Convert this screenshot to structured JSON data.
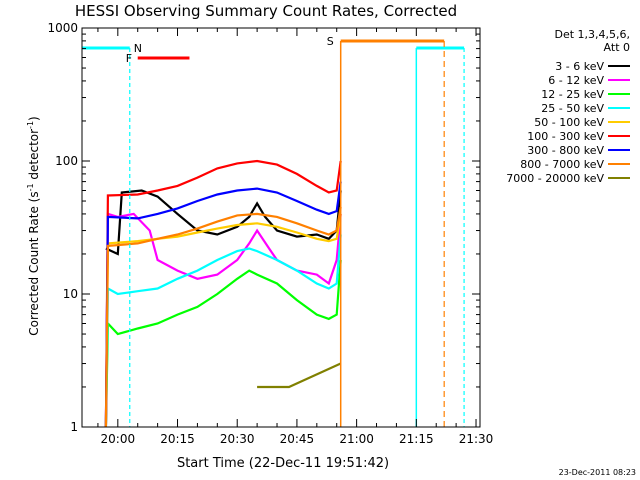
{
  "chart_data": {
    "type": "line",
    "title": "HESSI Observing Summary Count Rates, Corrected",
    "xlabel": "Start Time (22-Dec-11 19:51:42)",
    "ylabel_main": "Corrected Count Rate (s",
    "ylabel_sup1": "-1",
    "ylabel_mid": " detector",
    "ylabel_sup2": "-1",
    "ylabel_end": ")",
    "y_scale": "log",
    "ylim": [
      1,
      1000
    ],
    "xlim": [
      "19:51:42",
      "21:31:00"
    ],
    "xticks": [
      "20:00",
      "20:15",
      "20:30",
      "20:45",
      "21:00",
      "21:15",
      "21:30"
    ],
    "yticks": [
      "1",
      "10",
      "100",
      "1000"
    ],
    "legend_header": [
      "Det 1,3,4,5,6,",
      "Att 0"
    ],
    "legend_position": "top-right",
    "footer_timestamp": "23-Dec-2011 08:23",
    "series": [
      {
        "name": "3 - 6 keV",
        "color": "#000000",
        "points": [
          [
            "19:57",
            22
          ],
          [
            "20:00",
            20
          ],
          [
            "20:01",
            58
          ],
          [
            "20:06",
            60
          ],
          [
            "20:10",
            54
          ],
          [
            "20:15",
            40
          ],
          [
            "20:20",
            30
          ],
          [
            "20:25",
            28
          ],
          [
            "20:30",
            32
          ],
          [
            "20:33",
            38
          ],
          [
            "20:35",
            48
          ],
          [
            "20:37",
            38
          ],
          [
            "20:40",
            30
          ],
          [
            "20:45",
            27
          ],
          [
            "20:50",
            28
          ],
          [
            "20:53",
            26
          ],
          [
            "20:55",
            30
          ],
          [
            "20:56",
            60
          ]
        ]
      },
      {
        "name": "6 - 12 keV",
        "color": "#ff00ff",
        "points": [
          [
            "19:57",
            1
          ],
          [
            "19:57.5",
            40
          ],
          [
            "20:00",
            38
          ],
          [
            "20:04",
            40
          ],
          [
            "20:08",
            30
          ],
          [
            "20:10",
            18
          ],
          [
            "20:15",
            15
          ],
          [
            "20:20",
            13
          ],
          [
            "20:25",
            14
          ],
          [
            "20:30",
            18
          ],
          [
            "20:33",
            24
          ],
          [
            "20:35",
            30
          ],
          [
            "20:38",
            22
          ],
          [
            "20:40",
            18
          ],
          [
            "20:45",
            15
          ],
          [
            "20:50",
            14
          ],
          [
            "20:53",
            12
          ],
          [
            "20:55",
            18
          ],
          [
            "20:56",
            40
          ]
        ]
      },
      {
        "name": "12 - 25 keV",
        "color": "#00ff00",
        "points": [
          [
            "19:57",
            1
          ],
          [
            "19:57.5",
            6
          ],
          [
            "20:00",
            5
          ],
          [
            "20:05",
            5.5
          ],
          [
            "20:10",
            6
          ],
          [
            "20:15",
            7
          ],
          [
            "20:20",
            8
          ],
          [
            "20:25",
            10
          ],
          [
            "20:30",
            13
          ],
          [
            "20:33",
            15
          ],
          [
            "20:35",
            14
          ],
          [
            "20:40",
            12
          ],
          [
            "20:45",
            9
          ],
          [
            "20:50",
            7
          ],
          [
            "20:53",
            6.5
          ],
          [
            "20:55",
            7
          ],
          [
            "20:56",
            18
          ]
        ]
      },
      {
        "name": "25 - 50 keV",
        "color": "#00ffff",
        "points": [
          [
            "19:57",
            1
          ],
          [
            "19:57.5",
            11
          ],
          [
            "20:00",
            10
          ],
          [
            "20:05",
            10.5
          ],
          [
            "20:10",
            11
          ],
          [
            "20:15",
            13
          ],
          [
            "20:20",
            15
          ],
          [
            "20:25",
            18
          ],
          [
            "20:30",
            21
          ],
          [
            "20:33",
            22
          ],
          [
            "20:35",
            21
          ],
          [
            "20:40",
            18
          ],
          [
            "20:45",
            15
          ],
          [
            "20:50",
            12
          ],
          [
            "20:53",
            11
          ],
          [
            "20:55",
            12
          ],
          [
            "20:56",
            28
          ]
        ]
      },
      {
        "name": "50 - 100 keV",
        "color": "#ffcc00",
        "points": [
          [
            "19:57",
            1
          ],
          [
            "19:57.5",
            24
          ],
          [
            "20:05",
            25
          ],
          [
            "20:10",
            26
          ],
          [
            "20:15",
            27
          ],
          [
            "20:20",
            29
          ],
          [
            "20:25",
            31
          ],
          [
            "20:30",
            33
          ],
          [
            "20:35",
            34
          ],
          [
            "20:40",
            32
          ],
          [
            "20:45",
            29
          ],
          [
            "20:50",
            26
          ],
          [
            "20:53",
            25
          ],
          [
            "20:55",
            26
          ],
          [
            "20:56",
            40
          ]
        ]
      },
      {
        "name": "100 - 300 keV",
        "color": "#ff0000",
        "points": [
          [
            "19:57",
            1
          ],
          [
            "19:57.5",
            55
          ],
          [
            "20:05",
            56
          ],
          [
            "20:10",
            60
          ],
          [
            "20:15",
            65
          ],
          [
            "20:20",
            75
          ],
          [
            "20:25",
            88
          ],
          [
            "20:30",
            96
          ],
          [
            "20:35",
            100
          ],
          [
            "20:40",
            94
          ],
          [
            "20:45",
            80
          ],
          [
            "20:50",
            65
          ],
          [
            "20:53",
            58
          ],
          [
            "20:55",
            60
          ],
          [
            "20:56",
            100
          ]
        ]
      },
      {
        "name": "300 - 800 keV",
        "color": "#0000ff",
        "points": [
          [
            "19:57",
            1
          ],
          [
            "19:57.5",
            38
          ],
          [
            "20:05",
            37
          ],
          [
            "20:10",
            40
          ],
          [
            "20:15",
            44
          ],
          [
            "20:20",
            50
          ],
          [
            "20:25",
            56
          ],
          [
            "20:30",
            60
          ],
          [
            "20:35",
            62
          ],
          [
            "20:40",
            58
          ],
          [
            "20:45",
            50
          ],
          [
            "20:50",
            43
          ],
          [
            "20:53",
            40
          ],
          [
            "20:55",
            42
          ],
          [
            "20:56",
            70
          ]
        ]
      },
      {
        "name": "800 - 7000 keV",
        "color": "#ff8000",
        "points": [
          [
            "19:57",
            1
          ],
          [
            "19:57.5",
            23
          ],
          [
            "20:05",
            24
          ],
          [
            "20:10",
            26
          ],
          [
            "20:15",
            28
          ],
          [
            "20:20",
            31
          ],
          [
            "20:25",
            35
          ],
          [
            "20:30",
            39
          ],
          [
            "20:35",
            40
          ],
          [
            "20:40",
            38
          ],
          [
            "20:45",
            34
          ],
          [
            "20:50",
            30
          ],
          [
            "20:53",
            28
          ],
          [
            "20:55",
            30
          ],
          [
            "20:56",
            45
          ]
        ]
      },
      {
        "name": "7000 - 20000 keV",
        "color": "#808000",
        "points": [
          [
            "20:35",
            2
          ],
          [
            "20:43",
            2
          ],
          [
            "20:56",
            3
          ]
        ]
      }
    ],
    "flags": [
      {
        "label": "N",
        "color": "#00ffff"
      },
      {
        "label": "F",
        "color": "#ff0000"
      },
      {
        "label": "S",
        "color": "#ff8000"
      }
    ]
  }
}
